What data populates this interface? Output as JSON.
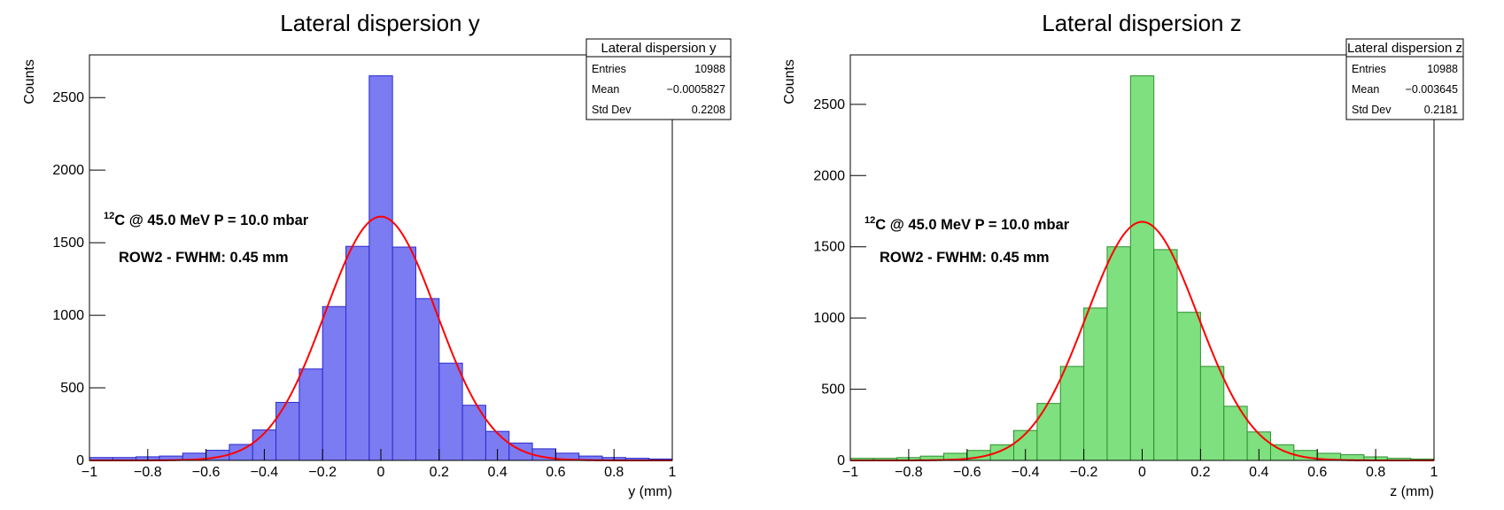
{
  "chart_data": [
    {
      "type": "histogram",
      "title": "Lateral dispersion y",
      "xlabel": "y (mm)",
      "ylabel": "Counts",
      "bins": [
        -1,
        -0.92,
        -0.84,
        -0.76,
        -0.68,
        -0.6,
        -0.52,
        -0.44,
        -0.36,
        -0.28,
        -0.2,
        -0.12,
        -0.04,
        0.04,
        0.12,
        0.2,
        0.28,
        0.36,
        0.44,
        0.52,
        0.6,
        0.68,
        0.76,
        0.84,
        0.92,
        1
      ],
      "counts": [
        20,
        20,
        25,
        30,
        50,
        70,
        110,
        210,
        400,
        630,
        1060,
        1475,
        2650,
        1470,
        1115,
        670,
        380,
        200,
        120,
        80,
        50,
        30,
        20,
        15,
        10
      ],
      "color": "#7b7bf2",
      "edgecolor": "#2a2ad0",
      "fit": {
        "color": "#ff0000",
        "amplitude": 1680,
        "mean": 0,
        "sigma": 0.191
      },
      "xlim": [
        -1,
        1
      ],
      "ylim": [
        0,
        2794
      ],
      "xticks": [
        {
          "value": -1,
          "label": "−1"
        },
        {
          "value": -0.8,
          "label": "−0.8"
        },
        {
          "value": -0.6,
          "label": "−0.6"
        },
        {
          "value": -0.4,
          "label": "−0.4"
        },
        {
          "value": -0.2,
          "label": "−0.2"
        },
        0,
        0.2,
        0.4,
        0.6,
        0.8,
        1
      ],
      "yticks": [
        0,
        500,
        1000,
        1500,
        2000,
        2500
      ],
      "stats": {
        "title": "Lateral dispersion y",
        "rows": [
          {
            "label": "Entries",
            "value": "10988"
          },
          {
            "label": "Mean",
            "value": "−0.0005827"
          },
          {
            "label": "Std Dev",
            "value": "0.2208"
          }
        ]
      },
      "annotation_sup": "12",
      "annotation": "C @ 45.0 MeV P = 10.0 mbar",
      "annotation2": "ROW2 - FWHM: 0.45 mm"
    },
    {
      "type": "histogram",
      "title": "Lateral dispersion z",
      "xlabel": "z (mm)",
      "ylabel": "Counts",
      "bins": [
        -1,
        -0.92,
        -0.84,
        -0.76,
        -0.68,
        -0.6,
        -0.52,
        -0.44,
        -0.36,
        -0.28,
        -0.2,
        -0.12,
        -0.04,
        0.04,
        0.12,
        0.2,
        0.28,
        0.36,
        0.44,
        0.52,
        0.6,
        0.68,
        0.76,
        0.84,
        0.92,
        1
      ],
      "counts": [
        15,
        15,
        20,
        30,
        50,
        70,
        110,
        210,
        400,
        660,
        1070,
        1500,
        2700,
        1480,
        1040,
        660,
        380,
        200,
        110,
        70,
        50,
        40,
        25,
        15,
        10
      ],
      "color": "#7ee07e",
      "edgecolor": "#2f8f2f",
      "fit": {
        "color": "#ff0000",
        "amplitude": 1675,
        "mean": 0,
        "sigma": 0.191
      },
      "xlim": [
        -1,
        1
      ],
      "ylim": [
        0,
        2847
      ],
      "xticks": [
        {
          "value": -1,
          "label": "−1"
        },
        {
          "value": -0.8,
          "label": "−0.8"
        },
        {
          "value": -0.6,
          "label": "−0.6"
        },
        {
          "value": -0.4,
          "label": "−0.4"
        },
        {
          "value": -0.2,
          "label": "−0.2"
        },
        0,
        0.2,
        0.4,
        0.6,
        0.8,
        1
      ],
      "yticks": [
        0,
        500,
        1000,
        1500,
        2000,
        2500
      ],
      "stats": {
        "title": "Lateral dispersion z",
        "rows": [
          {
            "label": "Entries",
            "value": "10988"
          },
          {
            "label": "Mean",
            "value": "−0.003645"
          },
          {
            "label": "Std Dev",
            "value": "0.2181"
          }
        ]
      },
      "annotation_sup": "12",
      "annotation": "C @ 45.0 MeV P = 10.0 mbar",
      "annotation2": "ROW2 - FWHM: 0.45 mm"
    }
  ]
}
